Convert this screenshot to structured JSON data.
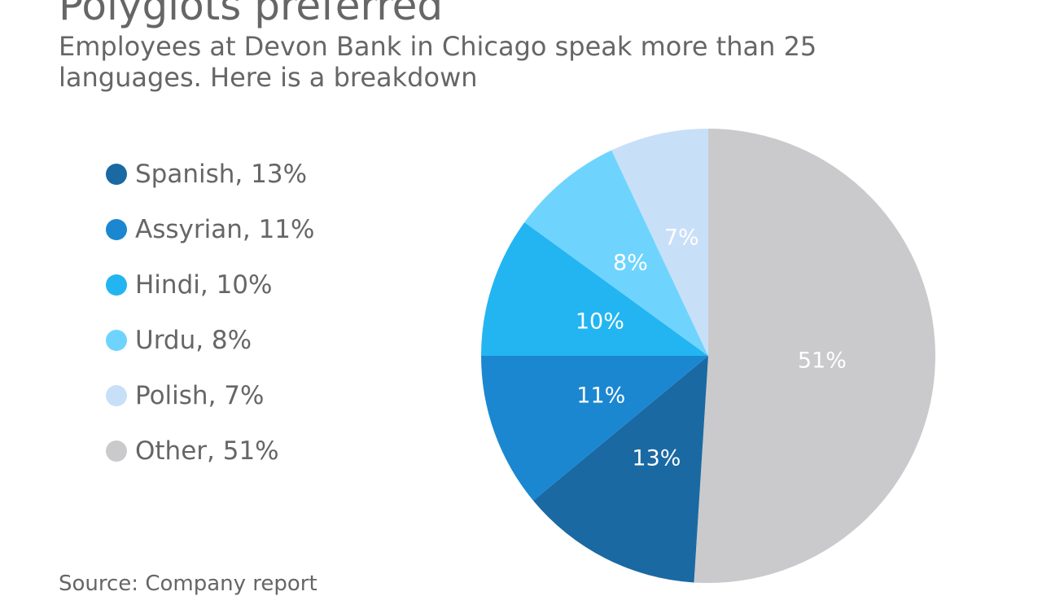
{
  "chart_data": {
    "type": "pie",
    "title": "Polyglots preferred",
    "subtitle": "Employees at Devon Bank in Chicago speak more than 25 languages. Here is a breakdown",
    "source": "Source: Company report",
    "legend_position": "left",
    "start": "top",
    "direction": "clockwise",
    "slices": [
      {
        "name": "Other",
        "value": 51,
        "label": "51%",
        "legend": "Other, 51%",
        "color": "#cacacc"
      },
      {
        "name": "Spanish",
        "value": 13,
        "label": "13%",
        "legend": "Spanish, 13%",
        "color": "#1a69a2"
      },
      {
        "name": "Assyrian",
        "value": 11,
        "label": "11%",
        "legend": "Assyrian, 11%",
        "color": "#1b87d1"
      },
      {
        "name": "Hindi",
        "value": 10,
        "label": "10%",
        "legend": "Hindi, 10%",
        "color": "#23b5f1"
      },
      {
        "name": "Urdu",
        "value": 8,
        "label": "8%",
        "legend": "Urdu, 8%",
        "color": "#6fd4fd"
      },
      {
        "name": "Polish",
        "value": 7,
        "label": "7%",
        "legend": "Polish, 7%",
        "color": "#c8dff8"
      }
    ],
    "legend_order": [
      "Spanish",
      "Assyrian",
      "Hindi",
      "Urdu",
      "Polish",
      "Other"
    ]
  }
}
